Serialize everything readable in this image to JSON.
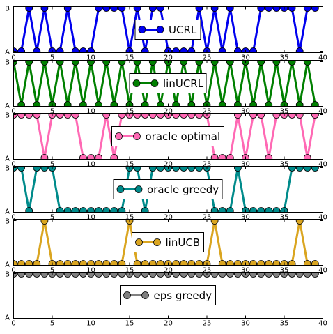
{
  "chart_data": {
    "type": "line",
    "x": [
      0,
      1,
      2,
      3,
      4,
      5,
      6,
      7,
      8,
      9,
      10,
      11,
      12,
      13,
      14,
      15,
      16,
      17,
      18,
      19,
      20,
      21,
      22,
      23,
      24,
      25,
      26,
      27,
      28,
      29,
      30,
      31,
      32,
      33,
      34,
      35,
      36,
      37,
      38,
      39
    ],
    "xlim": [
      0,
      40
    ],
    "xticks": [
      0,
      5,
      10,
      15,
      20,
      25,
      30,
      35,
      40
    ],
    "ylim": [
      0,
      1
    ],
    "ytick_labels": {
      "A": "A",
      "B": "B"
    },
    "grid": false,
    "legend_placement": "center",
    "panels": [
      {
        "name": "UCRL",
        "color": "#0000ee",
        "values": [
          0,
          0,
          1,
          0,
          1,
          0,
          0,
          1,
          0,
          0,
          0,
          1,
          1,
          1,
          1,
          0,
          1,
          0,
          1,
          1,
          0,
          0,
          0,
          0,
          1,
          0,
          1,
          0,
          1,
          0,
          0,
          0,
          1,
          1,
          1,
          1,
          1,
          0,
          1,
          1
        ]
      },
      {
        "name": "linUCRL",
        "color": "#008000",
        "values": [
          1,
          0,
          1,
          0,
          1,
          0,
          1,
          0,
          1,
          0,
          1,
          0,
          1,
          0,
          1,
          0,
          1,
          0,
          1,
          0,
          1,
          0,
          1,
          0,
          1,
          0,
          1,
          0,
          1,
          0,
          1,
          0,
          1,
          0,
          1,
          0,
          1,
          0,
          1,
          0
        ]
      },
      {
        "name": "oracle optimal",
        "color": "#ff69b4",
        "values": [
          1,
          1,
          1,
          1,
          0,
          1,
          1,
          1,
          1,
          0,
          0,
          0,
          1,
          0,
          1,
          1,
          1,
          1,
          1,
          1,
          1,
          1,
          1,
          1,
          1,
          1,
          0,
          0,
          0,
          1,
          0,
          1,
          1,
          0,
          1,
          1,
          1,
          1,
          0,
          1
        ]
      },
      {
        "name": "oracle greedy",
        "color": "#008b8b",
        "values": [
          1,
          1,
          0,
          1,
          1,
          1,
          0,
          0,
          0,
          0,
          0,
          0,
          0,
          0,
          0,
          1,
          1,
          0,
          1,
          1,
          1,
          1,
          1,
          1,
          1,
          1,
          0,
          0,
          0,
          1,
          0,
          0,
          0,
          0,
          0,
          0,
          1,
          1,
          1,
          1
        ]
      },
      {
        "name": "linUCB",
        "color": "#daa520",
        "values": [
          0,
          0,
          0,
          0,
          1,
          0,
          0,
          0,
          0,
          0,
          0,
          0,
          0,
          0,
          0,
          1,
          0,
          0,
          0,
          0,
          0,
          0,
          0,
          0,
          0,
          0,
          1,
          0,
          0,
          0,
          0,
          0,
          0,
          0,
          0,
          0,
          0,
          1,
          0,
          0
        ]
      },
      {
        "name": "eps greedy",
        "color": "#808080",
        "values": [
          1,
          1,
          1,
          1,
          1,
          1,
          1,
          1,
          1,
          1,
          1,
          1,
          1,
          1,
          1,
          1,
          1,
          1,
          1,
          1,
          1,
          1,
          1,
          1,
          1,
          1,
          1,
          1,
          1,
          1,
          1,
          1,
          1,
          1,
          1,
          1,
          1,
          1,
          1,
          1
        ]
      }
    ]
  }
}
